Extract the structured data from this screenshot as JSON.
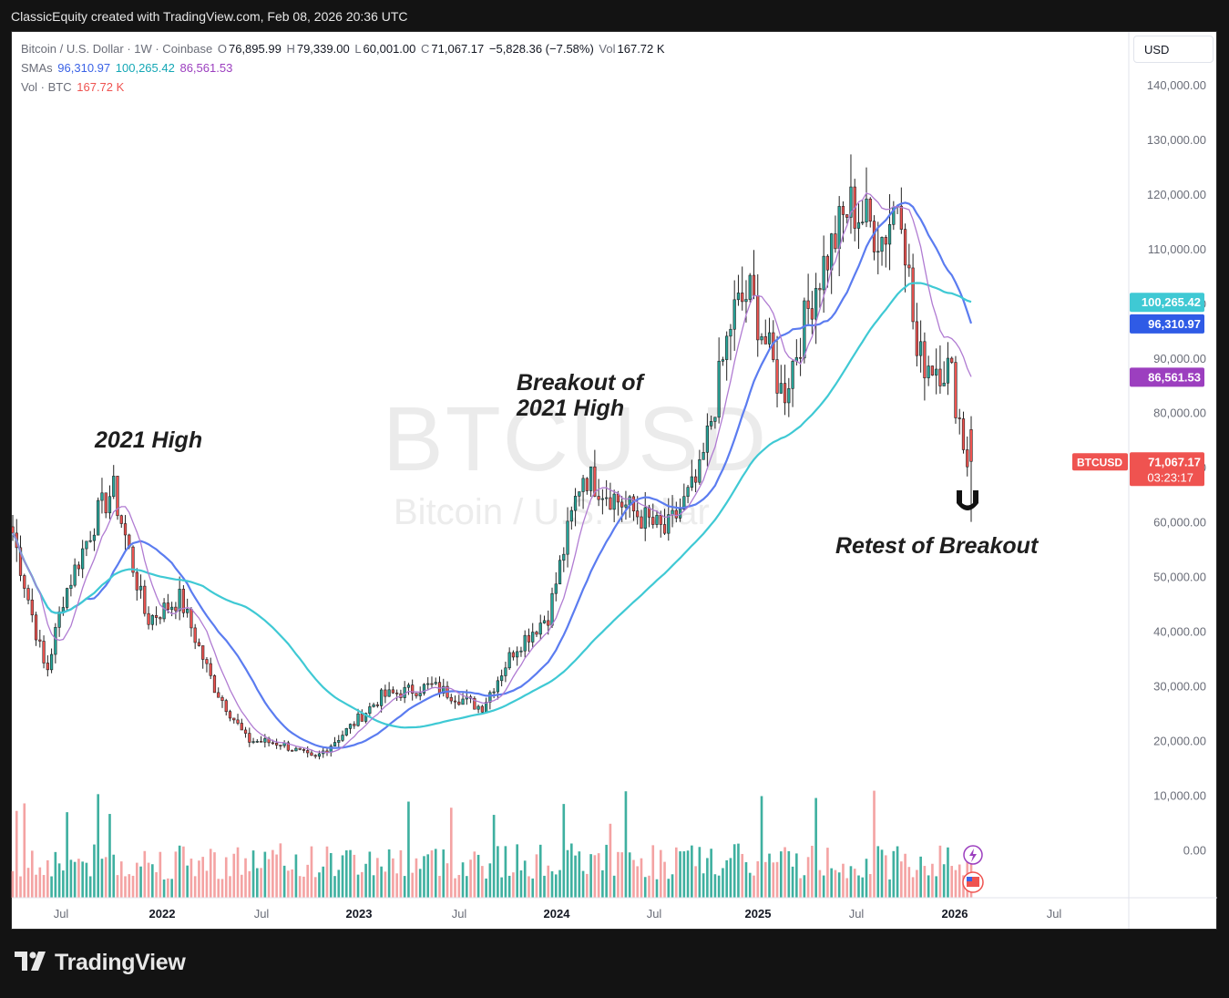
{
  "topbar": {
    "text": "ClassicEquity created with TradingView.com, Feb 08, 2026 20:36 UTC"
  },
  "legend": {
    "symbol": "Bitcoin / U.S. Dollar · 1W · Coinbase",
    "o_label": "O",
    "o": "76,895.99",
    "h_label": "H",
    "h": "79,339.00",
    "l_label": "L",
    "l": "60,001.00",
    "c_label": "C",
    "c": "71,067.17",
    "change": "−5,828.36 (−7.58%)",
    "vol_label": "Vol",
    "vol": "167.72 K",
    "sma_label": "SMAs",
    "sma1": "96,310.97",
    "sma2": "100,265.42",
    "sma3": "86,561.53",
    "vol_series_label": "Vol · BTC",
    "vol_series": "167.72 K"
  },
  "currency_button": "USD",
  "watermark": {
    "ticker": "BTCUSD",
    "name": "Bitcoin / U.S. Dollar"
  },
  "annotations": {
    "high_2021": "2021 High",
    "breakout": [
      "Breakout of",
      "2021 High"
    ],
    "retest": "Retest of Breakout"
  },
  "price_labels": {
    "sma2": "100,265.42",
    "sma1": "96,310.97",
    "sma3": "86,561.53",
    "symbol_tag": "BTCUSD",
    "last_price": "71,067.17",
    "countdown": "03:23:17"
  },
  "branding": "TradingView",
  "colors": {
    "up": "#26a69a",
    "down": "#ef5350",
    "sma_fast": "#5b7cf0",
    "sma_slow": "#3fc9d4",
    "sma_mid": "#b07bd2",
    "vol_up": "#3fb0a0",
    "vol_down": "#f4a3a3"
  },
  "chart_data": {
    "type": "candlestick",
    "title": "Bitcoin / U.S. Dollar · 1W · Coinbase",
    "yaxis": {
      "ticks": [
        "140,000.00",
        "130,000.00",
        "120,000.00",
        "110,000.00",
        "100,000.00",
        "90,000.00",
        "80,000.00",
        "70,000.00",
        "60,000.00",
        "50,000.00",
        "40,000.00",
        "30,000.00",
        "20,000.00",
        "10,000.00",
        "0.00"
      ],
      "range": [
        -10000,
        150000
      ]
    },
    "xaxis": {
      "ticks": [
        "Jul",
        "2022",
        "Jul",
        "2023",
        "Jul",
        "2024",
        "Jul",
        "2025",
        "Jul",
        "2026",
        "Jul"
      ]
    },
    "ohlc_anchor_points": [
      {
        "x": "2021-05",
        "close": 58000
      },
      {
        "x": "2021-07",
        "close": 32000
      },
      {
        "x": "2021-08",
        "close": 46000
      },
      {
        "x": "2021-10",
        "close": 61000
      },
      {
        "x": "2021-11",
        "close": 66000
      },
      {
        "x": "2022-01",
        "close": 42000
      },
      {
        "x": "2022-03",
        "close": 46000
      },
      {
        "x": "2022-05",
        "close": 30000
      },
      {
        "x": "2022-07",
        "close": 20000
      },
      {
        "x": "2022-09",
        "close": 19500
      },
      {
        "x": "2022-11",
        "close": 16500
      },
      {
        "x": "2023-01",
        "close": 22000
      },
      {
        "x": "2023-03",
        "close": 28000
      },
      {
        "x": "2023-06",
        "close": 30000
      },
      {
        "x": "2023-09",
        "close": 26000
      },
      {
        "x": "2023-11",
        "close": 37000
      },
      {
        "x": "2024-01",
        "close": 43000
      },
      {
        "x": "2024-03",
        "close": 69000
      },
      {
        "x": "2024-06",
        "close": 62000
      },
      {
        "x": "2024-08",
        "close": 58000
      },
      {
        "x": "2024-10",
        "close": 68000
      },
      {
        "x": "2024-12",
        "close": 98000
      },
      {
        "x": "2025-01",
        "close": 102000
      },
      {
        "x": "2025-03",
        "close": 83000
      },
      {
        "x": "2025-05",
        "close": 104000
      },
      {
        "x": "2025-07",
        "close": 118000
      },
      {
        "x": "2025-09",
        "close": 112000
      },
      {
        "x": "2025-10",
        "close": 121000
      },
      {
        "x": "2025-11",
        "close": 90000
      },
      {
        "x": "2026-01",
        "close": 88000
      },
      {
        "x": "2026-02",
        "close": 71067.17
      }
    ],
    "last_candle": {
      "open": 76895.99,
      "high": 79339.0,
      "low": 60001.0,
      "close": 71067.17,
      "change": -5828.36,
      "change_pct": -7.58,
      "volume": "167.72 K"
    },
    "series": [
      {
        "name": "SMA",
        "last": 96310.97,
        "color": "#5b7cf0"
      },
      {
        "name": "SMA",
        "last": 100265.42,
        "color": "#3fc9d4"
      },
      {
        "name": "SMA",
        "last": 86561.53,
        "color": "#b07bd2"
      }
    ]
  }
}
